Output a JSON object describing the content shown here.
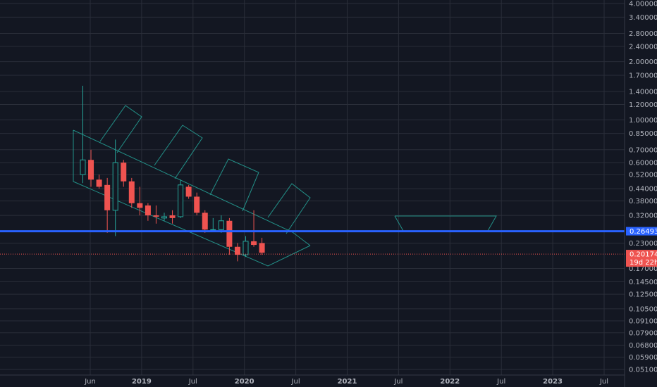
{
  "chart_data": {
    "type": "candlestick",
    "y_scale": "log",
    "ylim": [
      0.0495,
      4.05
    ],
    "x_ticks": [
      "Jun",
      "2019",
      "Jul",
      "2020",
      "Jul",
      "2021",
      "Jul",
      "2022",
      "Jul",
      "2023",
      "Jul"
    ],
    "y_ticks": [
      "4.00000",
      "3.40000",
      "2.80000",
      "2.40000",
      "2.00000",
      "1.70000",
      "1.40000",
      "1.20000",
      "1.00000",
      "0.85000",
      "0.70000",
      "0.60000",
      "0.52000",
      "0.44000",
      "0.38000",
      "0.32000",
      "0.23000",
      "0.17000",
      "0.14500",
      "0.12500",
      "0.10500",
      "0.09100",
      "0.07900",
      "0.06800",
      "0.05900",
      "0.05100"
    ],
    "candles": [
      {
        "open": 0.52,
        "high": 1.5,
        "low": 0.47,
        "close": 0.62
      },
      {
        "open": 0.62,
        "high": 0.7,
        "low": 0.45,
        "close": 0.49
      },
      {
        "open": 0.49,
        "high": 0.52,
        "low": 0.44,
        "close": 0.45
      },
      {
        "open": 0.46,
        "high": 0.5,
        "low": 0.26,
        "close": 0.34
      },
      {
        "open": 0.34,
        "high": 0.79,
        "low": 0.25,
        "close": 0.6
      },
      {
        "open": 0.6,
        "high": 0.62,
        "low": 0.45,
        "close": 0.48
      },
      {
        "open": 0.48,
        "high": 0.5,
        "low": 0.35,
        "close": 0.37
      },
      {
        "open": 0.37,
        "high": 0.45,
        "low": 0.32,
        "close": 0.35
      },
      {
        "open": 0.36,
        "high": 0.37,
        "low": 0.3,
        "close": 0.32
      },
      {
        "open": 0.32,
        "high": 0.36,
        "low": 0.29,
        "close": 0.315
      },
      {
        "open": 0.31,
        "high": 0.33,
        "low": 0.3,
        "close": 0.315
      },
      {
        "open": 0.32,
        "high": 0.34,
        "low": 0.29,
        "close": 0.31
      },
      {
        "open": 0.315,
        "high": 0.49,
        "low": 0.31,
        "close": 0.46
      },
      {
        "open": 0.45,
        "high": 0.46,
        "low": 0.39,
        "close": 0.4
      },
      {
        "open": 0.4,
        "high": 0.42,
        "low": 0.32,
        "close": 0.33
      },
      {
        "open": 0.33,
        "high": 0.34,
        "low": 0.26,
        "close": 0.27
      },
      {
        "open": 0.27,
        "high": 0.31,
        "low": 0.265,
        "close": 0.27
      },
      {
        "open": 0.27,
        "high": 0.32,
        "low": 0.26,
        "close": 0.3
      },
      {
        "open": 0.3,
        "high": 0.31,
        "low": 0.2,
        "close": 0.22
      },
      {
        "open": 0.22,
        "high": 0.23,
        "low": 0.185,
        "close": 0.2
      },
      {
        "open": 0.2,
        "high": 0.25,
        "low": 0.195,
        "close": 0.235
      },
      {
        "open": 0.235,
        "high": 0.34,
        "low": 0.22,
        "close": 0.225
      },
      {
        "open": 0.23,
        "high": 0.245,
        "low": 0.2,
        "close": 0.205
      }
    ],
    "horizontal_line": {
      "value": 0.26493,
      "label": "0.26493",
      "color": "#2962ff"
    },
    "last_price": {
      "value": 0.20174,
      "label": "0.20174",
      "countdown": "19d 22h",
      "color": "#ef5350"
    },
    "colors": {
      "background": "#131722",
      "grid": "#2a2e39",
      "up": "#26a69a",
      "down": "#ef5350",
      "drawing": "#26a69a",
      "axis_text": "#b2b5be"
    },
    "grid": true
  }
}
